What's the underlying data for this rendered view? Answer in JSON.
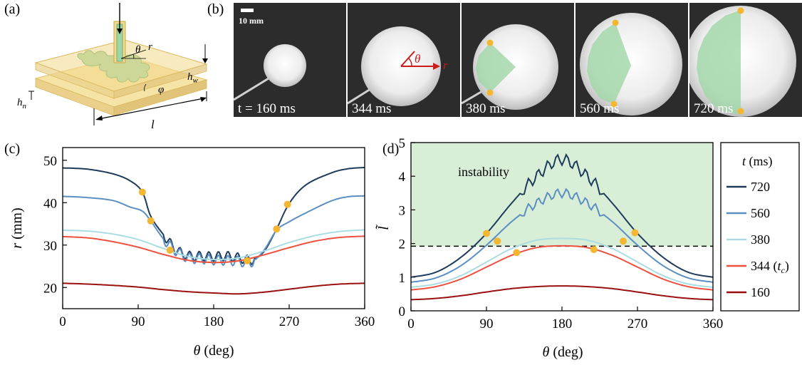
{
  "panels": {
    "a": "(a)",
    "b": "(b)",
    "c": "(c)",
    "d": "(d)"
  },
  "schematic": {
    "labels": {
      "theta": "θ",
      "r": "r",
      "phi": "φ",
      "h_n": "h",
      "h_n_sub": "n",
      "h_w": "h",
      "h_w_sub": "w",
      "l": "l"
    },
    "colors": {
      "plate": "#f3d98a",
      "fluid": "#9fd6a6",
      "tube": "#bfe3c6"
    }
  },
  "photos": {
    "scale_bar": "10 mm",
    "frames": [
      {
        "time": "t = 160 ms",
        "circle_r": 0
      },
      {
        "time": "344 ms"
      },
      {
        "time": "380 ms"
      },
      {
        "time": "560 ms"
      },
      {
        "time": "720 ms"
      }
    ],
    "theta": "θ",
    "r": "r"
  },
  "chart_data": [
    {
      "type": "line",
      "panel": "c",
      "xlabel": "θ (deg)",
      "ylabel": "r (mm)",
      "xlim": [
        0,
        360
      ],
      "ylim": [
        15,
        53
      ],
      "xticks": [
        0,
        90,
        180,
        270,
        360
      ],
      "yticks": [
        20,
        30,
        40,
        50
      ],
      "series": [
        {
          "name": "720",
          "color": "#1f3b5c",
          "x": [
            0,
            30,
            60,
            80,
            95,
            105,
            120,
            135,
            150,
            165,
            180,
            195,
            210,
            225,
            240,
            255,
            270,
            290,
            320,
            340,
            360
          ],
          "y": [
            48.2,
            47.9,
            46.8,
            45.2,
            42.5,
            36.8,
            32.5,
            29.0,
            27.5,
            27.4,
            27.3,
            27.4,
            27.0,
            26.5,
            28.5,
            33.8,
            39.8,
            44.2,
            47.0,
            48.0,
            48.3
          ]
        },
        {
          "name": "560",
          "color": "#5b8fc2",
          "x": [
            0,
            30,
            60,
            80,
            95,
            105,
            120,
            135,
            150,
            165,
            180,
            195,
            210,
            225,
            240,
            255,
            270,
            290,
            320,
            340,
            360
          ],
          "y": [
            41.5,
            41.2,
            40.5,
            39.0,
            38.0,
            35.7,
            31.5,
            28.6,
            27.0,
            26.8,
            26.5,
            26.4,
            26.2,
            26.0,
            28.8,
            33.5,
            35.5,
            37.6,
            40.4,
            41.4,
            41.6
          ]
        },
        {
          "name": "380",
          "color": "#a9dde3",
          "x": [
            0,
            30,
            60,
            90,
            120,
            150,
            180,
            210,
            240,
            270,
            300,
            330,
            360
          ],
          "y": [
            33.5,
            33.3,
            32.6,
            31.3,
            29.2,
            27.3,
            26.6,
            27.0,
            28.6,
            30.6,
            32.2,
            33.2,
            33.6
          ]
        },
        {
          "name": "344 (t_c)",
          "color": "#ee5040",
          "x": [
            0,
            30,
            60,
            90,
            120,
            150,
            180,
            210,
            240,
            270,
            300,
            330,
            360
          ],
          "y": [
            32.0,
            31.7,
            30.8,
            29.5,
            27.8,
            26.4,
            25.9,
            26.3,
            27.7,
            29.4,
            30.9,
            31.8,
            32.1
          ]
        },
        {
          "name": "160",
          "color": "#9a1010",
          "x": [
            0,
            30,
            60,
            90,
            120,
            150,
            180,
            210,
            240,
            270,
            300,
            330,
            360
          ],
          "y": [
            21.0,
            20.8,
            20.5,
            20.1,
            19.5,
            19.0,
            18.7,
            18.5,
            18.9,
            19.6,
            20.3,
            20.8,
            21.0
          ]
        }
      ],
      "markers": [
        {
          "x": 95,
          "y": 42.5
        },
        {
          "x": 105,
          "y": 35.7
        },
        {
          "x": 128,
          "y": 28.8
        },
        {
          "x": 220,
          "y": 26.3
        },
        {
          "x": 255,
          "y": 33.8
        },
        {
          "x": 268,
          "y": 39.6
        }
      ]
    },
    {
      "type": "line",
      "panel": "d",
      "xlabel": "θ (deg)",
      "ylabel": "l̃",
      "xlim": [
        0,
        360
      ],
      "ylim": [
        0,
        5
      ],
      "xticks": [
        0,
        90,
        180,
        270,
        360
      ],
      "yticks": [
        0,
        1,
        2,
        3,
        4,
        5
      ],
      "threshold": 1.92,
      "annotation": "instability",
      "series": [
        {
          "name": "720",
          "color": "#1f3b5c",
          "x": [
            0,
            30,
            60,
            90,
            120,
            150,
            180,
            210,
            240,
            270,
            300,
            330,
            360
          ],
          "y": [
            1.0,
            1.15,
            1.6,
            2.3,
            3.2,
            4.0,
            4.5,
            4.0,
            3.2,
            2.3,
            1.6,
            1.15,
            1.0
          ]
        },
        {
          "name": "560",
          "color": "#5b8fc2",
          "x": [
            0,
            30,
            60,
            90,
            120,
            150,
            180,
            210,
            240,
            270,
            300,
            330,
            360
          ],
          "y": [
            0.85,
            0.98,
            1.35,
            1.95,
            2.65,
            3.2,
            3.5,
            3.2,
            2.65,
            1.95,
            1.35,
            0.98,
            0.85
          ]
        },
        {
          "name": "380",
          "color": "#a9dde3",
          "x": [
            0,
            30,
            60,
            90,
            120,
            150,
            180,
            210,
            240,
            270,
            300,
            330,
            360
          ],
          "y": [
            0.7,
            0.8,
            1.05,
            1.45,
            1.85,
            2.1,
            2.15,
            2.1,
            1.85,
            1.45,
            1.05,
            0.8,
            0.7
          ]
        },
        {
          "name": "344 (t_c)",
          "color": "#ee5040",
          "x": [
            0,
            30,
            60,
            90,
            120,
            150,
            180,
            210,
            240,
            270,
            300,
            330,
            360
          ],
          "y": [
            0.62,
            0.72,
            0.95,
            1.3,
            1.65,
            1.88,
            1.93,
            1.88,
            1.65,
            1.3,
            0.95,
            0.72,
            0.62
          ]
        },
        {
          "name": "160",
          "color": "#9a1010",
          "x": [
            0,
            30,
            60,
            90,
            120,
            150,
            180,
            210,
            240,
            270,
            300,
            330,
            360
          ],
          "y": [
            0.33,
            0.37,
            0.45,
            0.56,
            0.66,
            0.72,
            0.74,
            0.72,
            0.66,
            0.56,
            0.45,
            0.37,
            0.33
          ]
        }
      ],
      "markers": [
        {
          "x": 90,
          "y": 2.3
        },
        {
          "x": 103,
          "y": 2.07
        },
        {
          "x": 126,
          "y": 1.73
        },
        {
          "x": 218,
          "y": 1.82
        },
        {
          "x": 253,
          "y": 2.07
        },
        {
          "x": 267,
          "y": 2.32
        }
      ],
      "legend": {
        "title": "t (ms)",
        "entries": [
          "720",
          "560",
          "380",
          "344 (t",
          "160"
        ],
        "tc_sub": "c",
        "tc_close": ")"
      }
    }
  ]
}
